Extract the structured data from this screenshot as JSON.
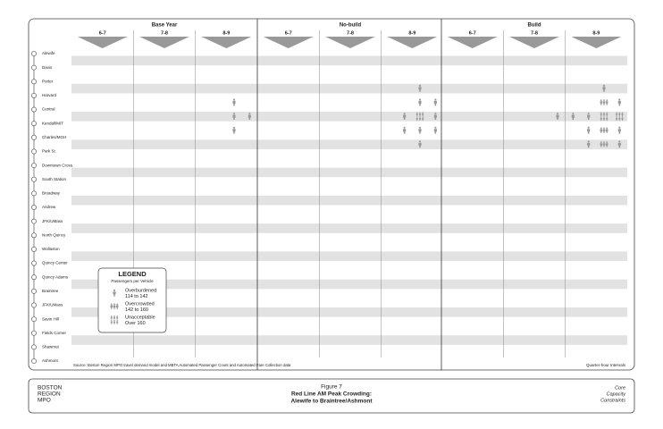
{
  "scenarios": [
    {
      "name": "Base Year",
      "marks": [
        {
          "segment": 3,
          "quarter": 10,
          "level": 1
        },
        {
          "segment": 4,
          "quarter": 10,
          "level": 1
        },
        {
          "segment": 4,
          "quarter": 11,
          "level": 1
        },
        {
          "segment": 5,
          "quarter": 10,
          "level": 1
        }
      ]
    },
    {
      "name": "No-build",
      "marks": [
        {
          "segment": 2,
          "quarter": 10,
          "level": 1
        },
        {
          "segment": 3,
          "quarter": 10,
          "level": 1
        },
        {
          "segment": 3,
          "quarter": 11,
          "level": 1
        },
        {
          "segment": 4,
          "quarter": 9,
          "level": 1
        },
        {
          "segment": 4,
          "quarter": 10,
          "level": 3
        },
        {
          "segment": 4,
          "quarter": 11,
          "level": 1
        },
        {
          "segment": 5,
          "quarter": 9,
          "level": 1
        },
        {
          "segment": 5,
          "quarter": 10,
          "level": 1
        },
        {
          "segment": 5,
          "quarter": 11,
          "level": 1
        },
        {
          "segment": 6,
          "quarter": 10,
          "level": 1
        }
      ]
    },
    {
      "name": "Build",
      "marks": [
        {
          "segment": 2,
          "quarter": 10,
          "level": 1
        },
        {
          "segment": 3,
          "quarter": 10,
          "level": 2
        },
        {
          "segment": 3,
          "quarter": 11,
          "level": 1
        },
        {
          "segment": 4,
          "quarter": 7,
          "level": 1
        },
        {
          "segment": 4,
          "quarter": 8,
          "level": 1
        },
        {
          "segment": 4,
          "quarter": 9,
          "level": 1
        },
        {
          "segment": 4,
          "quarter": 10,
          "level": 3
        },
        {
          "segment": 4,
          "quarter": 11,
          "level": 3
        },
        {
          "segment": 5,
          "quarter": 9,
          "level": 1
        },
        {
          "segment": 5,
          "quarter": 10,
          "level": 2
        },
        {
          "segment": 5,
          "quarter": 11,
          "level": 1
        },
        {
          "segment": 6,
          "quarter": 9,
          "level": 1
        },
        {
          "segment": 6,
          "quarter": 10,
          "level": 2
        },
        {
          "segment": 6,
          "quarter": 11,
          "level": 1
        }
      ]
    }
  ],
  "hours": [
    "6-7",
    "7-8",
    "8-9"
  ],
  "stations": [
    "Alewife",
    "Davis",
    "Porter",
    "Harvard",
    "Central",
    "Kendall/MIT",
    "Charles/MGH",
    "Park St",
    "Downtown Cross.",
    "South Station",
    "Broadway",
    "Andrew",
    "JFK/UMass",
    "North Quincy",
    "Wollaston",
    "Quincy Center",
    "Quincy Adams",
    "Braintree",
    "JFK/UMass",
    "Savin Hill",
    "Fields Corner",
    "Shawmut",
    "Ashmont"
  ],
  "legend": {
    "title": "LEGEND",
    "subtitle": "Passengers per Vehicle",
    "items": [
      {
        "label": "Overburdened",
        "range": "114 to 142"
      },
      {
        "label": "Overcrowded",
        "range": "142 to 160"
      },
      {
        "label": "Unacceptable",
        "range": "Over 160"
      }
    ]
  },
  "source": "Source: Boston Region MPO travel demand model and MBTA Automated Passenger Count and Automated Fare Collection data",
  "interval_note": "Quarter-hour Intervals",
  "footer": {
    "org": [
      "BOSTON",
      "REGION",
      "MPO"
    ],
    "figure": "Figure 7",
    "title_lines": [
      "Red Line AM Peak Crowding:",
      "Alewife to Braintree/Ashmont"
    ],
    "tags": [
      "Core",
      "Capacity",
      "Constraints"
    ]
  }
}
